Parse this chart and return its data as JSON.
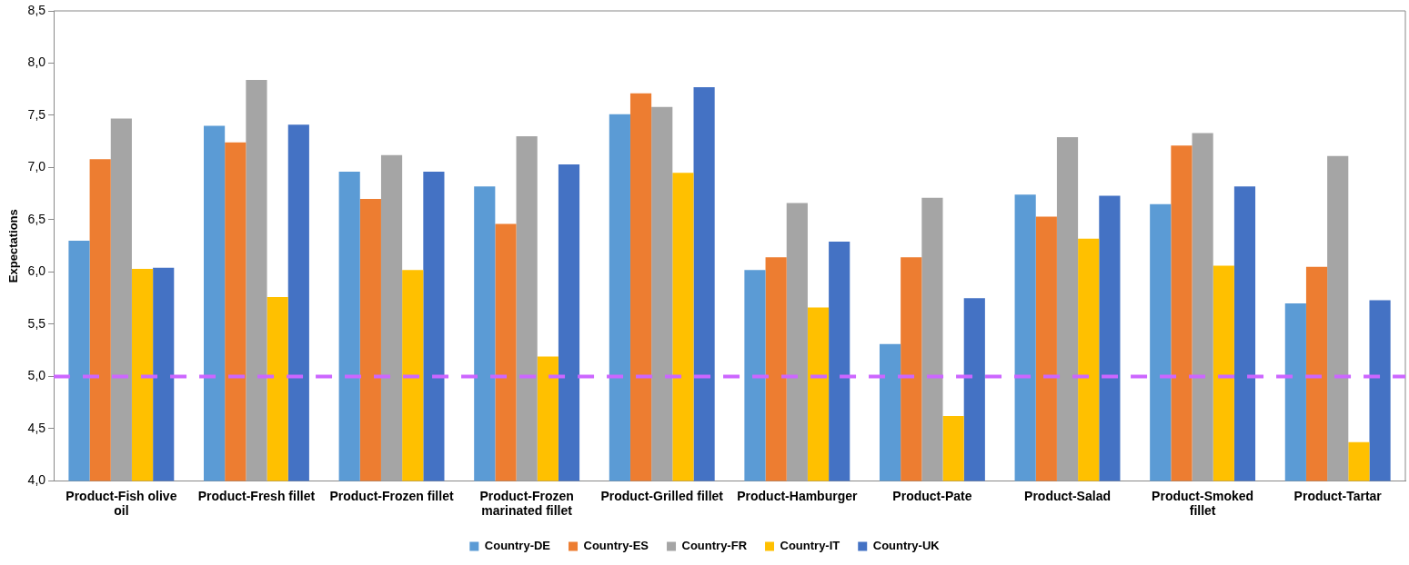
{
  "chart_data": {
    "type": "bar",
    "ylabel": "Expectations",
    "categories": [
      "Product-Fish olive oil",
      "Product-Fresh fillet",
      "Product-Frozen fillet",
      "Product-Frozen marinated fillet",
      "Product-Grilled fillet",
      "Product-Hamburger",
      "Product-Pate",
      "Product-Salad",
      "Product-Smoked fillet",
      "Product-Tartar"
    ],
    "series": [
      {
        "name": "Country-DE",
        "color": "#5b9bd5",
        "values": [
          6.3,
          7.4,
          6.96,
          6.82,
          7.51,
          6.02,
          5.31,
          6.74,
          6.65,
          5.7
        ]
      },
      {
        "name": "Country-ES",
        "color": "#ed7d31",
        "values": [
          7.08,
          7.24,
          6.7,
          6.46,
          7.71,
          6.14,
          6.14,
          6.53,
          7.21,
          6.05
        ]
      },
      {
        "name": "Country-FR",
        "color": "#a5a5a5",
        "values": [
          7.47,
          7.84,
          7.12,
          7.3,
          7.58,
          6.66,
          6.71,
          7.29,
          7.33,
          7.11
        ]
      },
      {
        "name": "Country-IT",
        "color": "#ffc000",
        "values": [
          6.03,
          5.76,
          6.02,
          5.19,
          6.95,
          5.66,
          4.62,
          6.32,
          6.06,
          4.37
        ]
      },
      {
        "name": "Country-UK",
        "color": "#4472c4",
        "values": [
          6.04,
          7.41,
          6.96,
          7.03,
          7.77,
          6.29,
          5.75,
          6.73,
          6.82,
          5.73
        ]
      }
    ],
    "ylim": [
      4.0,
      8.5
    ],
    "yticks": [
      {
        "value": 4.0,
        "label": "4,0"
      },
      {
        "value": 4.5,
        "label": "4,5"
      },
      {
        "value": 5.0,
        "label": "5,0"
      },
      {
        "value": 5.5,
        "label": "5,5"
      },
      {
        "value": 6.0,
        "label": "6,0"
      },
      {
        "value": 6.5,
        "label": "6,5"
      },
      {
        "value": 7.0,
        "label": "7,0"
      },
      {
        "value": 7.5,
        "label": "7,5"
      },
      {
        "value": 8.0,
        "label": "8,0"
      },
      {
        "value": 8.5,
        "label": "8,5"
      }
    ],
    "ref_lines": [
      {
        "axis": "y",
        "value": 5.0,
        "color": "#cc66ff",
        "line_style": "dashed"
      }
    ],
    "grid": false,
    "legend": "bottom"
  }
}
